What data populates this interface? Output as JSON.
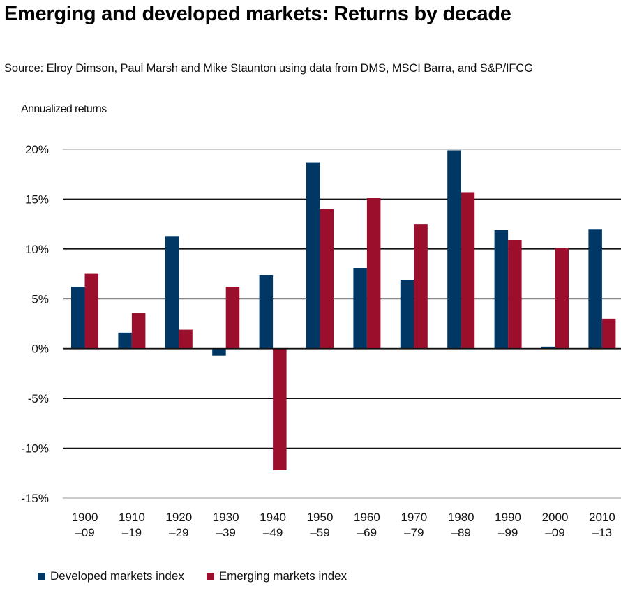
{
  "header": {
    "title": "Emerging and developed markets: Returns by decade",
    "subtitle": "Source: Elroy Dimson, Paul Marsh and Mike Staunton using data from DMS, MSCI Barra, and S&P/IFCG"
  },
  "colors": {
    "developed": "#003764",
    "emerging": "#9b0f2d",
    "gridline_dark": "#111111",
    "gridline_light": "#cccccc"
  },
  "chart_data": {
    "type": "bar",
    "title": "Emerging and developed markets: Returns by decade",
    "subtitle": "Source: Elroy Dimson, Paul Marsh and Mike Staunton using data from DMS, MSCI Barra, and S&P/IFCG",
    "xlabel": "",
    "ylabel": "Annualized returns",
    "ylim": [
      -15,
      20
    ],
    "yticks": [
      20,
      15,
      10,
      5,
      0,
      -5,
      -10,
      -15
    ],
    "ytick_labels": [
      "20%",
      "15%",
      "10%",
      "5%",
      "0%",
      "-5%",
      "-10%",
      "-15%"
    ],
    "grid": true,
    "legend_position": "bottom-left",
    "categories": [
      {
        "line1": "1900",
        "line2": "–09"
      },
      {
        "line1": "1910",
        "line2": "–19"
      },
      {
        "line1": "1920",
        "line2": "–29"
      },
      {
        "line1": "1930",
        "line2": "–39"
      },
      {
        "line1": "1940",
        "line2": "–49"
      },
      {
        "line1": "1950",
        "line2": "–59"
      },
      {
        "line1": "1960",
        "line2": "–69"
      },
      {
        "line1": "1970",
        "line2": "–79"
      },
      {
        "line1": "1980",
        "line2": "–89"
      },
      {
        "line1": "1990",
        "line2": "–99"
      },
      {
        "line1": "2000",
        "line2": "–09"
      },
      {
        "line1": "2010",
        "line2": "–13"
      }
    ],
    "series": [
      {
        "name": "Developed markets index",
        "key": "developed",
        "values": [
          6.2,
          1.6,
          11.3,
          -0.7,
          7.4,
          18.7,
          8.1,
          6.9,
          19.9,
          11.9,
          0.2,
          12.0
        ]
      },
      {
        "name": "Emerging markets index",
        "key": "emerging",
        "values": [
          7.5,
          3.6,
          1.9,
          6.2,
          -12.2,
          14.0,
          15.1,
          12.5,
          15.7,
          10.9,
          10.1,
          3.0
        ]
      }
    ]
  },
  "legend": {
    "items": [
      {
        "label": "Developed markets index",
        "key": "developed"
      },
      {
        "label": "Emerging markets index",
        "key": "emerging"
      }
    ]
  }
}
